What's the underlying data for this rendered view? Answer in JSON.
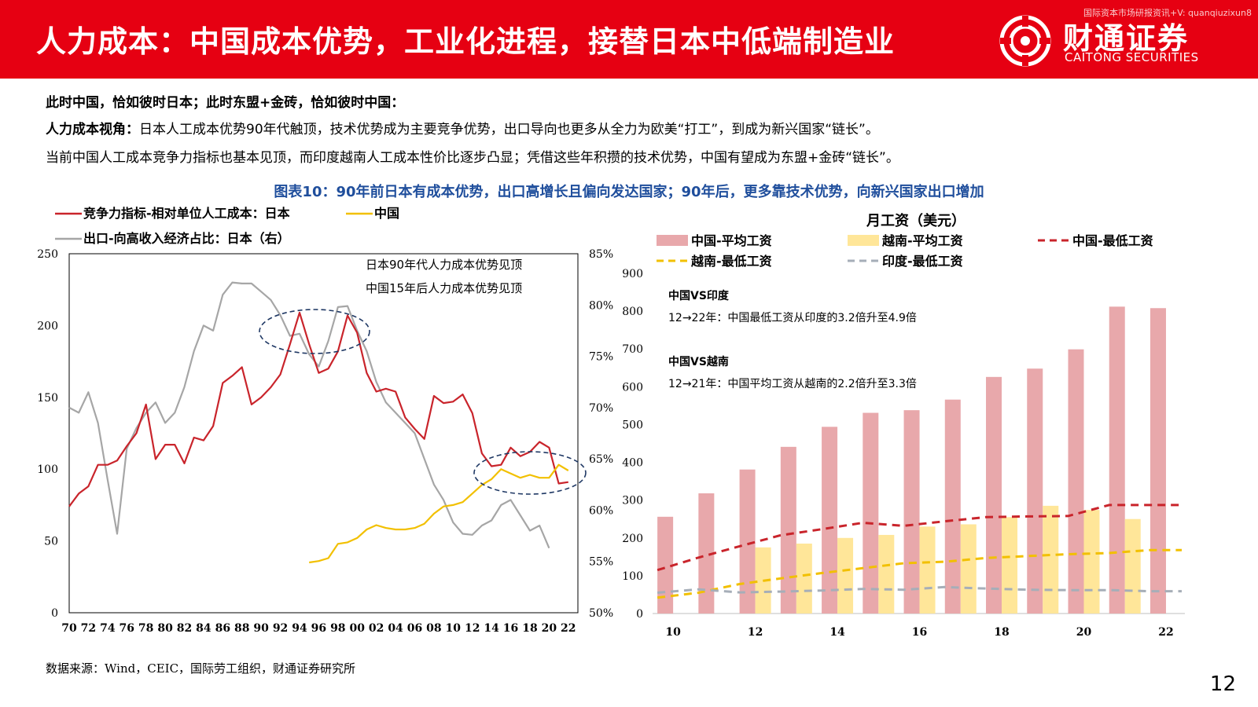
{
  "header": {
    "title": "人力成本：中国成本优势，工业化进程，接替日本中低端制造业",
    "watermark": "国际资本市场研报资讯+V: quanqiuzixun8",
    "logo_cn": "财通证券",
    "logo_en": "CAITONG SECURITIES",
    "bg_color": "#e60012"
  },
  "intro": {
    "line1": "此时中国，恰如彼时日本；此时东盟+金砖，恰如彼时中国：",
    "line2_lead": "人力成本视角：",
    "line2_text": "日本人工成本优势90年代触顶，技术优势成为主要竞争优势，出口导向也更多从全力为欧美“打工”，到成为新兴国家“链长”。",
    "line3": "当前中国人工成本竞争力指标也基本见顶，而印度越南人工成本性价比逐步凸显；凭借这些年积攒的技术优势，中国有望成为东盟+金砖“链长”。"
  },
  "caption": "图表10：90年前日本有成本优势，出口高增长且偏向发达国家；90年后，更多靠技术优势，向新兴国家出口增加",
  "footnote": "数据来源：Wind，CEIC，国际劳工组织，财通证券研究所",
  "page_number": "12",
  "chart_data": [
    {
      "type": "line",
      "legend": [
        {
          "name": "竞争力指标-相对单位人工成本：日本",
          "color": "#c9242b"
        },
        {
          "name": "中国",
          "color": "#f2c000"
        },
        {
          "name": "出口-向高收入经济占比：日本（右）",
          "color": "#a6a6a6"
        }
      ],
      "annotations": [
        "日本90年代人力成本优势见顶",
        "中国15年后人力成本优势见顶"
      ],
      "x_tick_labels": [
        "70",
        "72",
        "74",
        "76",
        "78",
        "80",
        "82",
        "84",
        "86",
        "88",
        "90",
        "92",
        "94",
        "96",
        "98",
        "00",
        "02",
        "04",
        "06",
        "08",
        "10",
        "12",
        "14",
        "16",
        "18",
        "20",
        "22"
      ],
      "ylim": [
        0,
        250
      ],
      "y_tick_labels": [
        "0",
        "50",
        "100",
        "150",
        "200",
        "250"
      ],
      "ylim_right": [
        50,
        85
      ],
      "y_right_tick_labels": [
        "50%",
        "55%",
        "60%",
        "65%",
        "70%",
        "75%",
        "80%",
        "85%"
      ],
      "series": [
        {
          "name": "竞争力指标-相对单位人工成本：日本",
          "color": "#c9242b",
          "axis": "left",
          "x": [
            1970,
            1971,
            1972,
            1973,
            1974,
            1975,
            1976,
            1977,
            1978,
            1979,
            1980,
            1981,
            1982,
            1983,
            1984,
            1985,
            1986,
            1987,
            1988,
            1989,
            1990,
            1991,
            1992,
            1993,
            1994,
            1995,
            1996,
            1997,
            1998,
            1999,
            2000,
            2001,
            2002,
            2003,
            2004,
            2005,
            2006,
            2007,
            2008,
            2009,
            2010,
            2011,
            2012,
            2013,
            2014,
            2015,
            2016,
            2017,
            2018,
            2019,
            2020,
            2021,
            2022
          ],
          "values": [
            74,
            83,
            88,
            103,
            103,
            106,
            116,
            125,
            145,
            107,
            117,
            117,
            104,
            122,
            120,
            130,
            160,
            165,
            171,
            145,
            150,
            157,
            166,
            187,
            209,
            187,
            167,
            170,
            182,
            207,
            195,
            167,
            154,
            156,
            154,
            136,
            128,
            121,
            151,
            146,
            147,
            152,
            139,
            111,
            102,
            103,
            115,
            109,
            112,
            119,
            115,
            90,
            91
          ]
        },
        {
          "name": "中国",
          "color": "#f2c000",
          "axis": "left",
          "x": [
            1995,
            1996,
            1997,
            1998,
            1999,
            2000,
            2001,
            2002,
            2003,
            2004,
            2005,
            2006,
            2007,
            2008,
            2009,
            2010,
            2011,
            2012,
            2013,
            2014,
            2015,
            2016,
            2017,
            2018,
            2019,
            2020,
            2021,
            2022
          ],
          "values": [
            35,
            36,
            38,
            48,
            49,
            52,
            58,
            61,
            59,
            58,
            58,
            59,
            62,
            69,
            74,
            75,
            77,
            83,
            89,
            93,
            100,
            97,
            94,
            96,
            94,
            94,
            103,
            99
          ]
        },
        {
          "name": "出口-向高收入经济占比：日本（右）",
          "color": "#a6a6a6",
          "axis": "right",
          "x": [
            1970,
            1971,
            1972,
            1973,
            1974,
            1975,
            1976,
            1977,
            1978,
            1979,
            1980,
            1981,
            1982,
            1983,
            1984,
            1985,
            1986,
            1987,
            1988,
            1989,
            1990,
            1991,
            1992,
            1993,
            1994,
            1995,
            1996,
            1997,
            1998,
            1999,
            2000,
            2001,
            2002,
            2003,
            2004,
            2005,
            2006,
            2007,
            2008,
            2009,
            2010,
            2011,
            2012,
            2013,
            2014,
            2015,
            2016,
            2017,
            2018,
            2019,
            2020
          ],
          "values": [
            70,
            69.5,
            71.5,
            68.5,
            63,
            57.7,
            66,
            68,
            69.5,
            70.5,
            68.5,
            69.5,
            72,
            75.5,
            78,
            77.5,
            81,
            82.2,
            82.1,
            82.1,
            81.3,
            80.5,
            79,
            77,
            77.2,
            75.2,
            74,
            76.5,
            79.8,
            79.9,
            77.5,
            75.5,
            72.5,
            70.5,
            69.5,
            68.5,
            67.5,
            65,
            62.5,
            61,
            58.8,
            57.7,
            57.6,
            58.5,
            59,
            60.5,
            61,
            59.5,
            58,
            58.5,
            56.3
          ]
        }
      ]
    },
    {
      "type": "bar",
      "title": "月工资（美元）",
      "legend": [
        {
          "name": "中国-平均工资",
          "color": "#e8a8ab",
          "kind": "bar"
        },
        {
          "name": "越南-平均工资",
          "color": "#ffe699",
          "kind": "bar"
        },
        {
          "name": "中国-最低工资",
          "color": "#c9242b",
          "kind": "dash"
        },
        {
          "name": "越南-最低工资",
          "color": "#f2c000",
          "kind": "dash"
        },
        {
          "name": "印度-最低工资",
          "color": "#a6aeb8",
          "kind": "dash"
        }
      ],
      "annotations": [
        {
          "heading": "中国VS印度",
          "text": "12→22年：中国最低工资从印度的3.2倍升至4.9倍"
        },
        {
          "heading": "中国VS越南",
          "text": "12→21年：中国平均工资从越南的2.2倍升至3.3倍"
        }
      ],
      "x": [
        2010,
        2011,
        2012,
        2013,
        2014,
        2015,
        2016,
        2017,
        2018,
        2019,
        2020,
        2021,
        2022
      ],
      "x_tick_labels": [
        "10",
        "12",
        "14",
        "16",
        "18",
        "20",
        "22"
      ],
      "ylim": [
        0,
        900
      ],
      "y_tick_labels": [
        "0",
        "100",
        "200",
        "300",
        "400",
        "500",
        "600",
        "700",
        "800",
        "900"
      ],
      "series": [
        {
          "name": "中国-平均工资",
          "kind": "bar",
          "values": [
            256,
            318,
            381,
            441,
            494,
            531,
            538,
            566,
            626,
            648,
            699,
            812,
            808
          ]
        },
        {
          "name": "越南-平均工资",
          "kind": "bar",
          "values": [
            null,
            null,
            175,
            185,
            200,
            208,
            230,
            236,
            255,
            285,
            274,
            250,
            null
          ]
        },
        {
          "name": "中国-最低工资",
          "kind": "line",
          "values": [
            115,
            148,
            178,
            207,
            223,
            240,
            232,
            244,
            255,
            257,
            258,
            287,
            287
          ]
        },
        {
          "name": "越南-最低工资",
          "kind": "line",
          "values": [
            42,
            55,
            78,
            93,
            107,
            120,
            133,
            137,
            147,
            152,
            157,
            160,
            168
          ]
        },
        {
          "name": "印度-最低工资",
          "kind": "line",
          "values": [
            55,
            64,
            56,
            58,
            61,
            65,
            63,
            70,
            66,
            63,
            62,
            62,
            59
          ]
        }
      ]
    }
  ]
}
